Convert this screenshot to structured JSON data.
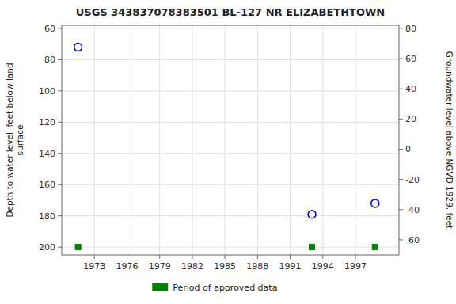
{
  "chart_data": {
    "type": "scatter",
    "title": "USGS 343837078383501 BL-127 NR ELIZABETHTOWN",
    "ylabel": "Depth to water level, feet below land\n surface",
    "y2label": "Groundwater level above NGVD 1929, feet",
    "x": [
      1971.5,
      1993.0,
      1998.8
    ],
    "series": [
      {
        "color": "#0000cc",
        "marker": "circle",
        "values": [
          72,
          179,
          172
        ]
      },
      {
        "name": "Period of approved data",
        "color": "#008000",
        "marker": "square",
        "values": [
          200,
          200,
          200
        ]
      }
    ],
    "xlim": [
      1970.0,
      2001.0
    ],
    "xticks": [
      1973,
      1976,
      1979,
      1982,
      1985,
      1988,
      1991,
      1994,
      1997
    ],
    "ylim": [
      205,
      58
    ],
    "yticks": [
      60,
      80,
      100,
      120,
      140,
      160,
      180,
      200
    ],
    "y2lim": [
      -70,
      82
    ],
    "y2ticks": [
      80,
      60,
      40,
      20,
      0,
      -20,
      -40,
      -60
    ],
    "grid": true,
    "legend": "bottom"
  }
}
